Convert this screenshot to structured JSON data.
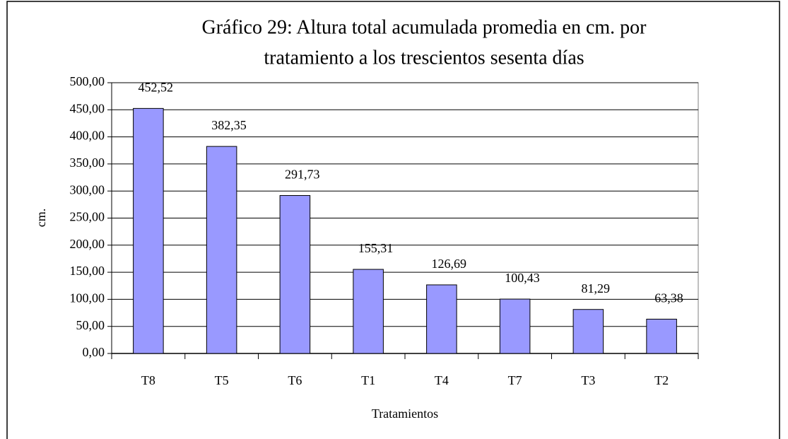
{
  "chart_data": {
    "type": "bar",
    "title": [
      "Gráfico 29: Altura total acumulada promedia en cm. por",
      "tratamiento a los trescientos sesenta días"
    ],
    "xlabel": "Tratamientos",
    "ylabel": "cm.",
    "categories": [
      "T8",
      "T5",
      "T6",
      "T1",
      "T4",
      "T7",
      "T3",
      "T2"
    ],
    "values": [
      452.52,
      382.35,
      291.73,
      155.31,
      126.69,
      100.43,
      81.29,
      63.38
    ],
    "value_labels": [
      "452,52",
      "382,35",
      "291,73",
      "155,31",
      "126,69",
      "100,43",
      "81,29",
      "63,38"
    ],
    "color": "#9999ff",
    "ylim": [
      0,
      500
    ],
    "yticks": [
      {
        "value": 0,
        "label": "0,00"
      },
      {
        "value": 50,
        "label": "50,00"
      },
      {
        "value": 100,
        "label": "100,00"
      },
      {
        "value": 150,
        "label": "150,00"
      },
      {
        "value": 200,
        "label": "200,00"
      },
      {
        "value": 250,
        "label": "250,00"
      },
      {
        "value": 300,
        "label": "300,00"
      },
      {
        "value": 350,
        "label": "350,00"
      },
      {
        "value": 400,
        "label": "400,00"
      },
      {
        "value": 450,
        "label": "450,00"
      },
      {
        "value": 500,
        "label": "500,00"
      }
    ],
    "grid": true
  }
}
